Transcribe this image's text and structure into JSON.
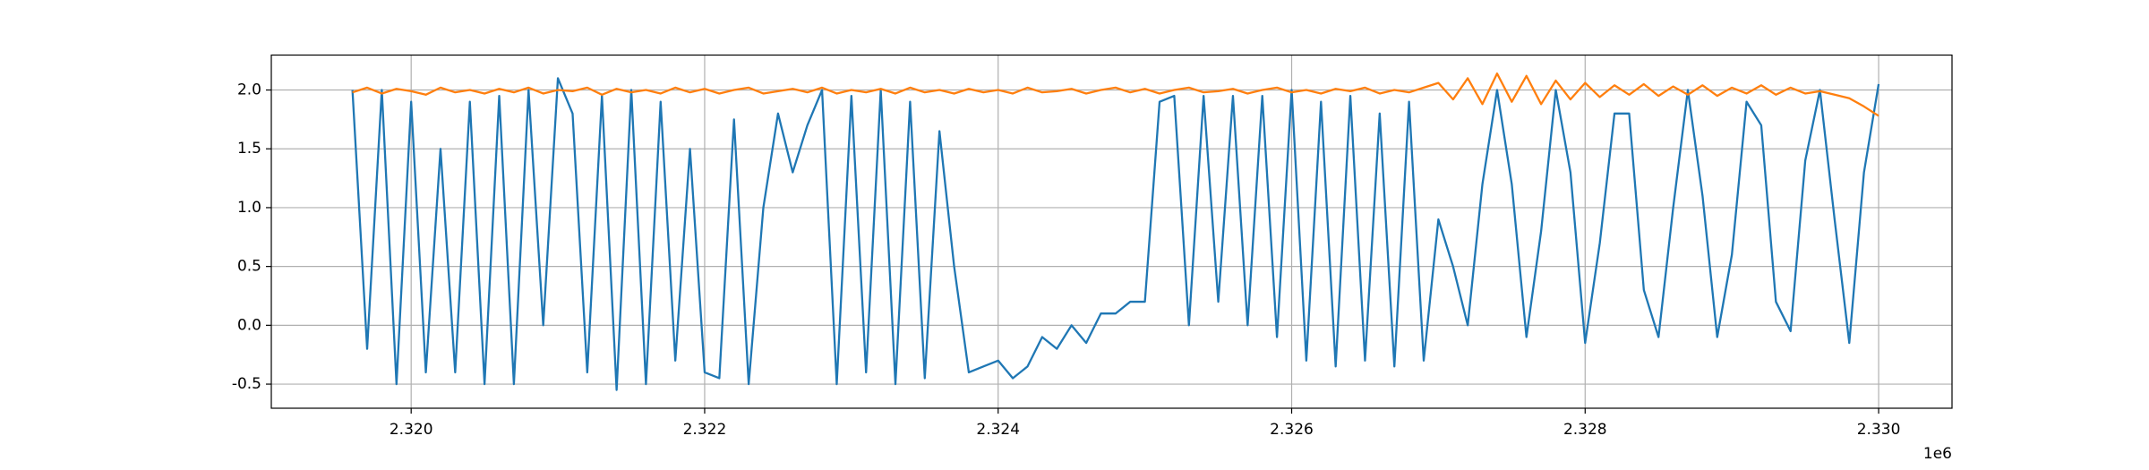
{
  "chart_data": {
    "type": "line",
    "x": [
      2319600,
      2319700,
      2319800,
      2319900,
      2320000,
      2320100,
      2320200,
      2320300,
      2320400,
      2320500,
      2320600,
      2320700,
      2320800,
      2320900,
      2321000,
      2321100,
      2321200,
      2321300,
      2321400,
      2321500,
      2321600,
      2321700,
      2321800,
      2321900,
      2322000,
      2322100,
      2322200,
      2322300,
      2322400,
      2322500,
      2322600,
      2322700,
      2322800,
      2322900,
      2323000,
      2323100,
      2323200,
      2323300,
      2323400,
      2323500,
      2323600,
      2323700,
      2323800,
      2323900,
      2324000,
      2324100,
      2324200,
      2324300,
      2324400,
      2324500,
      2324600,
      2324700,
      2324800,
      2324900,
      2325000,
      2325100,
      2325200,
      2325300,
      2325400,
      2325500,
      2325600,
      2325700,
      2325800,
      2325900,
      2326000,
      2326100,
      2326200,
      2326300,
      2326400,
      2326500,
      2326600,
      2326700,
      2326800,
      2326900,
      2327000,
      2327100,
      2327200,
      2327300,
      2327400,
      2327500,
      2327600,
      2327700,
      2327800,
      2327900,
      2328000,
      2328100,
      2328200,
      2328300,
      2328400,
      2328500,
      2328600,
      2328700,
      2328800,
      2328900,
      2329000,
      2329100,
      2329200,
      2329300,
      2329400,
      2329500,
      2329600,
      2329700,
      2329800,
      2329900,
      2330000
    ],
    "series": [
      {
        "color": "#1f77b4",
        "values": [
          2.0,
          -0.2,
          2.0,
          -0.5,
          1.9,
          -0.4,
          1.5,
          -0.4,
          1.9,
          -0.5,
          1.95,
          -0.5,
          2.0,
          0.0,
          2.1,
          1.8,
          -0.4,
          1.95,
          -0.55,
          2.0,
          -0.5,
          1.9,
          -0.3,
          1.5,
          -0.4,
          -0.45,
          1.75,
          -0.5,
          1.0,
          1.8,
          1.3,
          1.7,
          2.0,
          -0.5,
          1.95,
          -0.4,
          2.0,
          -0.5,
          1.9,
          -0.45,
          1.65,
          0.5,
          -0.4,
          -0.35,
          -0.3,
          -0.45,
          -0.35,
          -0.1,
          -0.2,
          0.0,
          -0.15,
          0.1,
          0.1,
          0.2,
          0.2,
          1.9,
          1.95,
          0.0,
          1.95,
          0.2,
          1.95,
          0.0,
          1.95,
          -0.1,
          2.0,
          -0.3,
          1.9,
          -0.35,
          1.95,
          -0.3,
          1.8,
          -0.35,
          1.9,
          -0.3,
          0.9,
          0.5,
          0.0,
          1.2,
          2.0,
          1.2,
          -0.1,
          0.8,
          2.0,
          1.3,
          -0.15,
          0.7,
          1.8,
          1.8,
          0.3,
          -0.1,
          1.0,
          2.0,
          1.1,
          -0.1,
          0.6,
          1.9,
          1.7,
          0.2,
          -0.05,
          1.4,
          2.0,
          0.9,
          -0.15,
          1.3,
          2.05
        ]
      },
      {
        "color": "#ff7f0e",
        "values": [
          1.98,
          2.02,
          1.97,
          2.01,
          1.99,
          1.96,
          2.02,
          1.98,
          2.0,
          1.97,
          2.01,
          1.98,
          2.02,
          1.97,
          2.0,
          1.99,
          2.02,
          1.96,
          2.01,
          1.98,
          2.0,
          1.97,
          2.02,
          1.98,
          2.01,
          1.97,
          2.0,
          2.02,
          1.97,
          1.99,
          2.01,
          1.98,
          2.02,
          1.97,
          2.0,
          1.98,
          2.01,
          1.97,
          2.02,
          1.98,
          2.0,
          1.97,
          2.01,
          1.98,
          2.0,
          1.97,
          2.02,
          1.98,
          1.99,
          2.01,
          1.97,
          2.0,
          2.02,
          1.98,
          2.01,
          1.97,
          2.0,
          2.02,
          1.98,
          1.99,
          2.01,
          1.97,
          2.0,
          2.02,
          1.98,
          2.0,
          1.97,
          2.01,
          1.99,
          2.02,
          1.97,
          2.0,
          1.98,
          2.02,
          2.06,
          1.92,
          2.1,
          1.88,
          2.14,
          1.9,
          2.12,
          1.88,
          2.08,
          1.92,
          2.06,
          1.94,
          2.04,
          1.96,
          2.05,
          1.95,
          2.03,
          1.96,
          2.04,
          1.95,
          2.02,
          1.97,
          2.04,
          1.96,
          2.02,
          1.97,
          1.99,
          1.96,
          1.93,
          1.86,
          1.78
        ]
      }
    ],
    "xlim": [
      2319047,
      2330500
    ],
    "xticks": [
      {
        "value": 2320000,
        "label": "2.320"
      },
      {
        "value": 2322000,
        "label": "2.322"
      },
      {
        "value": 2324000,
        "label": "2.324"
      },
      {
        "value": 2326000,
        "label": "2.326"
      },
      {
        "value": 2328000,
        "label": "2.328"
      },
      {
        "value": 2330000,
        "label": "2.330"
      }
    ],
    "x_offset_label": "1e6",
    "ylim": [
      -0.705,
      2.297
    ],
    "yticks": [
      -0.5,
      {
        "value": 0,
        "label": "0.0"
      },
      0.5,
      {
        "value": 1,
        "label": "1.0"
      },
      1.5,
      {
        "value": 2,
        "label": "2.0"
      }
    ],
    "grid": true
  }
}
